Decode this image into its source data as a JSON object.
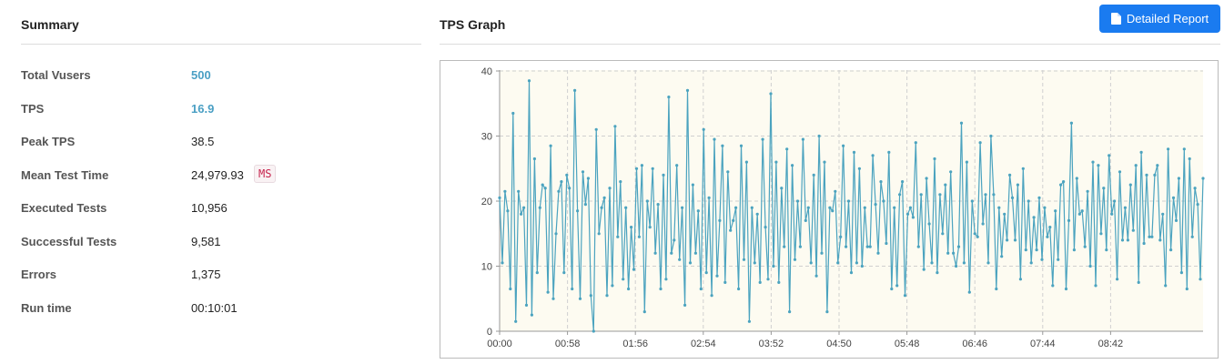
{
  "summary": {
    "title": "Summary",
    "rows": [
      {
        "label": "Total Vusers",
        "value": "500"
      },
      {
        "label": "TPS",
        "value": "16.9"
      },
      {
        "label": "Peak TPS",
        "value": "38.5"
      },
      {
        "label": "Mean Test Time",
        "value": "24,979.93",
        "unit": "MS"
      },
      {
        "label": "Executed Tests",
        "value": "10,956"
      },
      {
        "label": "Successful Tests",
        "value": "9,581"
      },
      {
        "label": "Errors",
        "value": "1,375"
      },
      {
        "label": "Run time",
        "value": "00:10:01"
      }
    ]
  },
  "graph_section": {
    "title": "TPS Graph",
    "report_button_label": "Detailed Report",
    "report_button_icon": "file-icon"
  },
  "colors": {
    "accent_value": "#4a9fc4",
    "line": "#4ba3bf",
    "plot_bg": "#fdfbf1",
    "button": "#1a7bf0"
  },
  "chart_data": {
    "type": "line",
    "title": "",
    "xlabel": "",
    "ylabel": "",
    "ylim": [
      0,
      40
    ],
    "yticks": [
      0,
      10,
      20,
      30,
      40
    ],
    "xlim": [
      "00:00",
      "10:01"
    ],
    "xticks": [
      "00:00",
      "00:58",
      "01:56",
      "02:54",
      "03:52",
      "04:50",
      "05:48",
      "06:46",
      "07:44",
      "08:42"
    ],
    "grid": true,
    "series": [
      {
        "values": [
          20.5,
          10.5,
          21.5,
          18.5,
          6.5,
          33.5,
          1.5,
          21.5,
          18,
          19,
          4,
          38.5,
          2.5,
          26.5,
          9,
          19,
          22.5,
          22,
          6,
          28.5,
          5,
          15,
          21.5,
          23,
          9,
          24,
          22,
          6.5,
          37,
          18.5,
          5,
          24.5,
          19.5,
          23.5,
          5.5,
          0,
          31,
          15,
          19,
          20.5,
          5.5,
          22,
          7,
          31.5,
          14.5,
          23,
          8,
          19,
          6.5,
          16,
          9.5,
          25,
          14.5,
          25.5,
          3,
          20,
          16,
          25,
          12,
          19.5,
          6.5,
          24,
          8,
          36,
          12,
          14,
          25.5,
          11,
          19,
          4,
          37,
          10.5,
          22.5,
          12,
          18.5,
          6.5,
          31,
          9,
          20.5,
          5.5,
          29.5,
          8.5,
          17,
          28.5,
          7.5,
          24.5,
          15.5,
          17,
          19,
          6.5,
          28.5,
          11,
          26,
          1.5,
          19,
          10.5,
          18,
          7.5,
          29.5,
          16,
          8,
          36.5,
          10,
          26,
          7.5,
          22,
          13,
          28,
          3,
          25.5,
          11,
          20,
          13,
          29.5,
          17,
          19,
          10.5,
          24,
          8.5,
          30,
          12,
          26,
          3,
          19,
          18.5,
          21.5,
          10.5,
          14.5,
          28.5,
          13,
          20,
          9,
          27.5,
          10.5,
          25,
          10,
          19,
          13,
          13,
          27,
          19.5,
          12,
          23,
          20,
          13.5,
          27.5,
          6.5,
          19,
          7,
          21,
          23,
          5.5,
          18,
          19,
          17.5,
          29,
          13,
          21,
          9.5,
          23.5,
          16.5,
          10.5,
          26.5,
          9,
          21,
          15,
          22.5,
          12,
          24.5,
          12,
          10,
          13,
          32,
          10.5,
          26,
          6,
          20,
          15,
          14.5,
          29,
          16.5,
          21,
          10.5,
          30,
          21,
          6.5,
          19,
          11.5,
          18,
          14,
          24,
          20.5,
          14,
          22.5,
          8,
          25,
          12.5,
          20,
          10.5,
          17.5,
          12.5,
          20.5,
          11,
          19,
          14.5,
          16,
          7,
          18.5,
          11,
          22.5,
          23,
          6.5,
          17,
          32,
          12.5,
          23.5,
          18,
          18.5,
          13,
          21.5,
          10,
          26,
          7,
          25.5,
          15,
          22,
          12.5,
          27,
          18,
          20,
          8,
          24.5,
          14,
          19,
          14,
          22.5,
          15.5,
          25.5,
          7.5,
          27.5,
          13.5,
          24,
          14.5,
          14.5,
          24,
          25.5,
          14,
          18,
          7,
          28,
          12.5,
          20.5,
          17,
          23.5,
          9,
          28,
          6.5,
          26.5,
          14.5,
          22,
          19.5,
          8,
          23.5
        ]
      }
    ]
  }
}
